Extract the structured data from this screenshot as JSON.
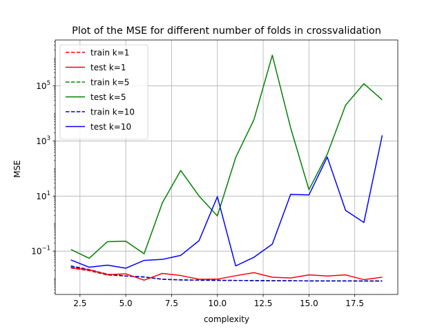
{
  "chart_data": {
    "type": "line",
    "title": "Plot of the MSE for different number of folds in crossvalidation",
    "xlabel": "complexity",
    "ylabel": "MSE",
    "xlim": [
      1.15,
      19.85
    ],
    "ylim": [
      0.00267,
      4640000
    ],
    "yscale": "log",
    "grid": true,
    "legend_position": "top-left",
    "x_ticks": [
      2.5,
      5.0,
      7.5,
      10.0,
      12.5,
      15.0,
      17.5
    ],
    "x_tick_labels": [
      "2.5",
      "5.0",
      "7.5",
      "10.0",
      "12.5",
      "15.0",
      "17.5"
    ],
    "y_ticks": [
      0.1,
      10,
      1000,
      100000
    ],
    "y_tick_labels": [
      {
        "base": "10",
        "exp": "−1"
      },
      {
        "base": "10",
        "exp": "1"
      },
      {
        "base": "10",
        "exp": "3"
      },
      {
        "base": "10",
        "exp": "5"
      }
    ],
    "x": [
      2,
      3,
      4,
      5,
      6,
      7,
      8,
      9,
      10,
      11,
      12,
      13,
      14,
      15,
      16,
      17,
      18,
      19
    ],
    "series": [
      {
        "name": "train k=1",
        "color": "#ff0000",
        "dashed": true,
        "values": [
          0.0245,
          0.0195,
          0.0135,
          0.0125,
          0.0115,
          0.0095,
          0.009,
          0.0088,
          0.0087,
          0.0086,
          0.0085,
          0.0084,
          0.0084,
          0.0083,
          0.0083,
          0.0083,
          0.0082,
          0.0082
        ]
      },
      {
        "name": "test k=1",
        "color": "#ff0000",
        "dashed": false,
        "values": [
          0.025,
          0.021,
          0.014,
          0.015,
          0.0088,
          0.0155,
          0.013,
          0.0095,
          0.0096,
          0.0128,
          0.0165,
          0.0113,
          0.0106,
          0.0137,
          0.0125,
          0.0137,
          0.0092,
          0.0113
        ]
      },
      {
        "name": "train k=5",
        "color": "#008000",
        "dashed": true,
        "values": [
          0.0265,
          0.0205,
          0.014,
          0.0125,
          0.0115,
          0.0095,
          0.009,
          0.0088,
          0.0087,
          0.0086,
          0.0085,
          0.0084,
          0.0084,
          0.0083,
          0.0083,
          0.0083,
          0.0082,
          0.0082
        ]
      },
      {
        "name": "test k=5",
        "color": "#008000",
        "dashed": false,
        "values": [
          0.115,
          0.055,
          0.22,
          0.23,
          0.08,
          5.7,
          85,
          10,
          1.9,
          250,
          6000,
          1300000,
          3000,
          17,
          330,
          20000,
          120000,
          31000
        ]
      },
      {
        "name": "train k=10",
        "color": "#0000cc",
        "dashed": true,
        "values": [
          0.029,
          0.0215,
          0.0145,
          0.0125,
          0.0115,
          0.0095,
          0.009,
          0.0088,
          0.0087,
          0.0086,
          0.0085,
          0.0084,
          0.0084,
          0.0083,
          0.0083,
          0.0083,
          0.0082,
          0.0082
        ]
      },
      {
        "name": "test k=10",
        "color": "#0000ff",
        "dashed": false,
        "values": [
          0.048,
          0.026,
          0.031,
          0.024,
          0.046,
          0.05,
          0.07,
          0.24,
          9.5,
          0.029,
          0.06,
          0.18,
          11.5,
          11,
          260,
          3,
          1.1,
          1600
        ]
      }
    ]
  }
}
